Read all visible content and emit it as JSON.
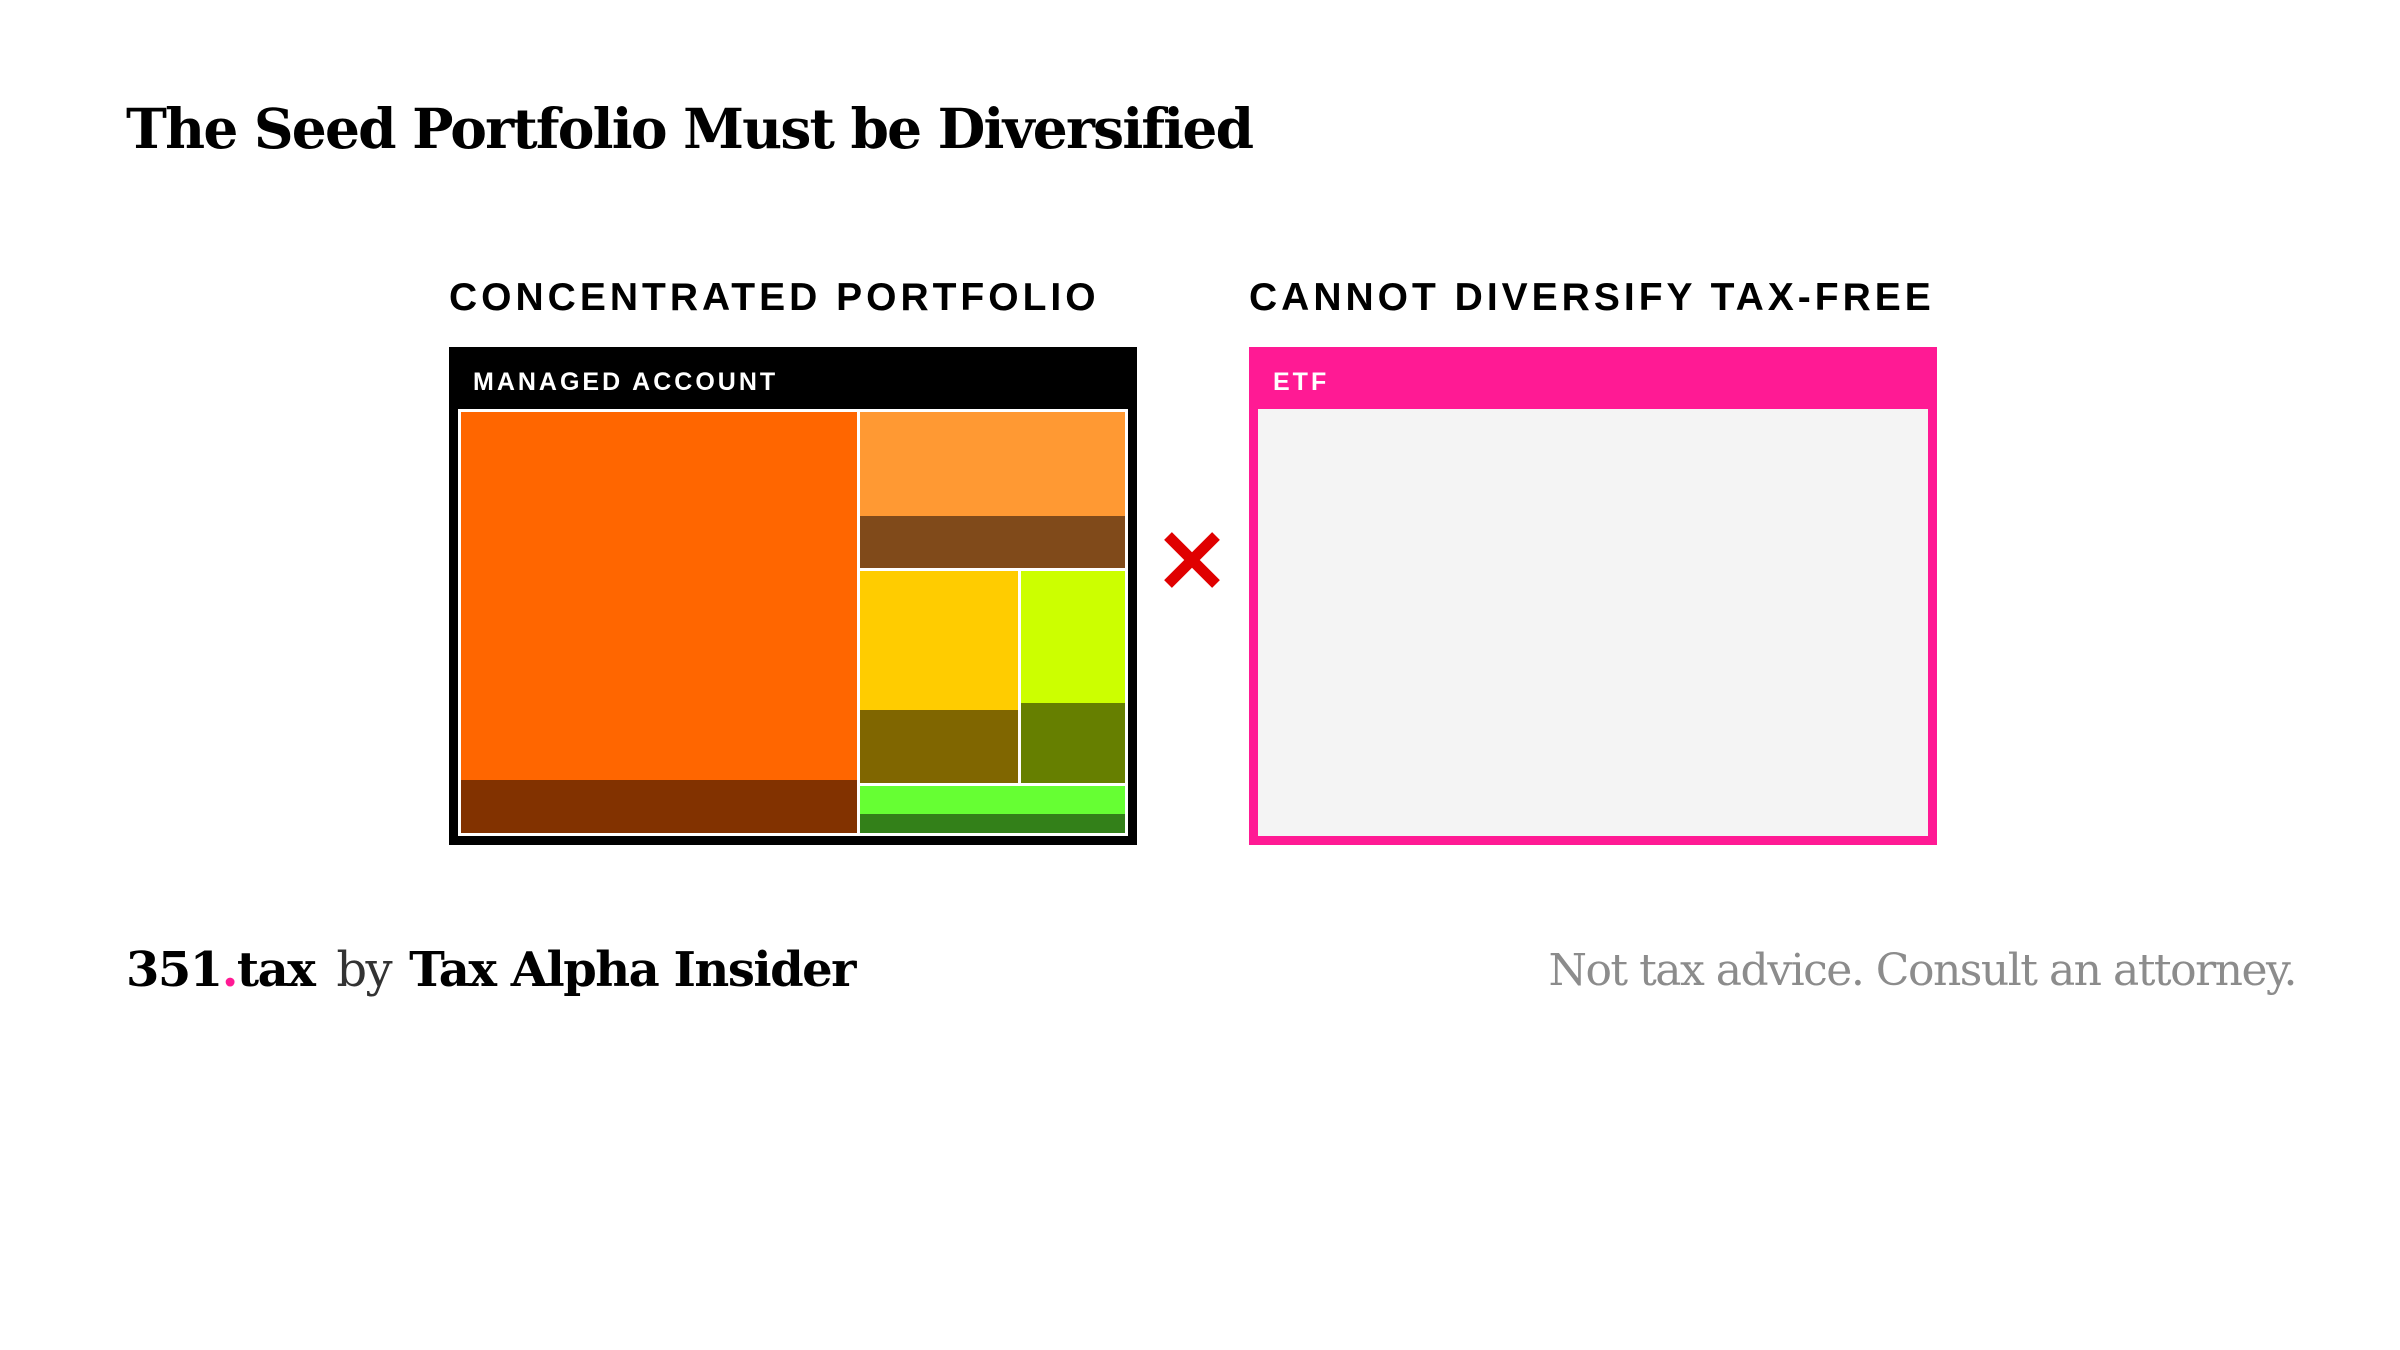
{
  "slide": {
    "title": "The Seed Portfolio Must be Diversified"
  },
  "left_panel": {
    "heading": "CONCENTRATED PORTFOLIO",
    "bar_label": "MANAGED ACCOUNT",
    "frame_color": "#000000",
    "holdings": [
      {
        "color": "#ff6600",
        "shade": "#823200"
      },
      {
        "color": "#ff9933",
        "shade": "#804a1a"
      },
      {
        "color": "#ffcc00",
        "shade": "#806600"
      },
      {
        "color": "#ccff00",
        "shade": "#667f00"
      },
      {
        "color": "#66ff33",
        "shade": "#338019"
      }
    ]
  },
  "connector": {
    "icon": "red-x-icon",
    "color": "#e00000"
  },
  "right_panel": {
    "heading": "CANNOT DIVERSIFY TAX-FREE",
    "bar_label": "ETF",
    "frame_color": "#ff1a94",
    "fill_color": "#f4f4f4"
  },
  "footer": {
    "brand_number": "351",
    "brand_dot": ".",
    "brand_suffix": "tax",
    "brand_by": "by",
    "brand_publisher": "Tax Alpha Insider",
    "disclaimer": "Not tax advice. Consult an attorney."
  }
}
